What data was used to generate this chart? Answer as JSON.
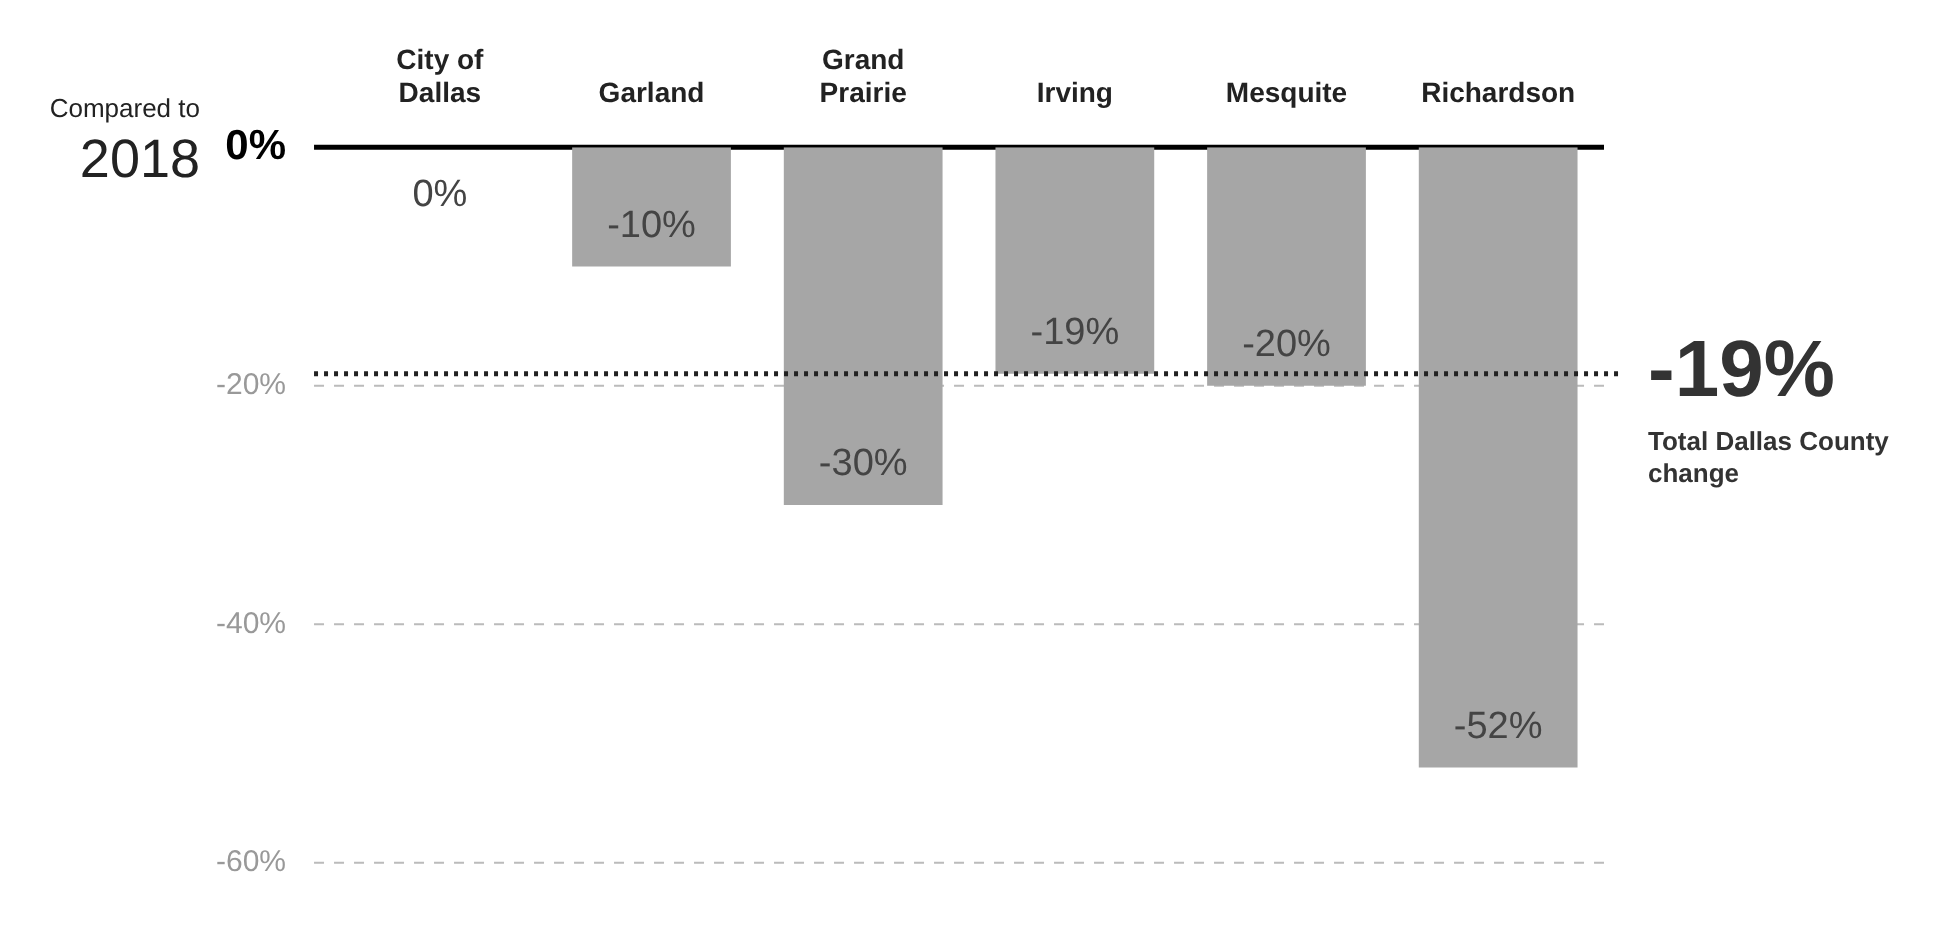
{
  "chart_data": {
    "type": "bar",
    "categories": [
      "City of Dallas",
      "Garland",
      "Grand Prairie",
      "Irving",
      "Mesquite",
      "Richardson"
    ],
    "values": [
      0,
      -10,
      -30,
      -19,
      -20,
      -52
    ],
    "color": "#a6a6a6",
    "value_labels": [
      "0%",
      "-10%",
      "-30%",
      "-19%",
      "-20%",
      "-52%"
    ],
    "ylim": [
      -60,
      0
    ],
    "yticks": [
      {
        "value": 0,
        "label": "0%"
      },
      {
        "value": -20,
        "label": "-20%"
      },
      {
        "value": -40,
        "label": "-40%"
      },
      {
        "value": -60,
        "label": "-60%"
      }
    ],
    "grid": "y",
    "ref_lines": [
      {
        "axis": "y",
        "value": -19,
        "label": "-19%",
        "line_style": "dotted",
        "color": "#222222"
      }
    ],
    "annotations": [
      "Compared to 2018",
      "Total Dallas County change"
    ]
  }
}
